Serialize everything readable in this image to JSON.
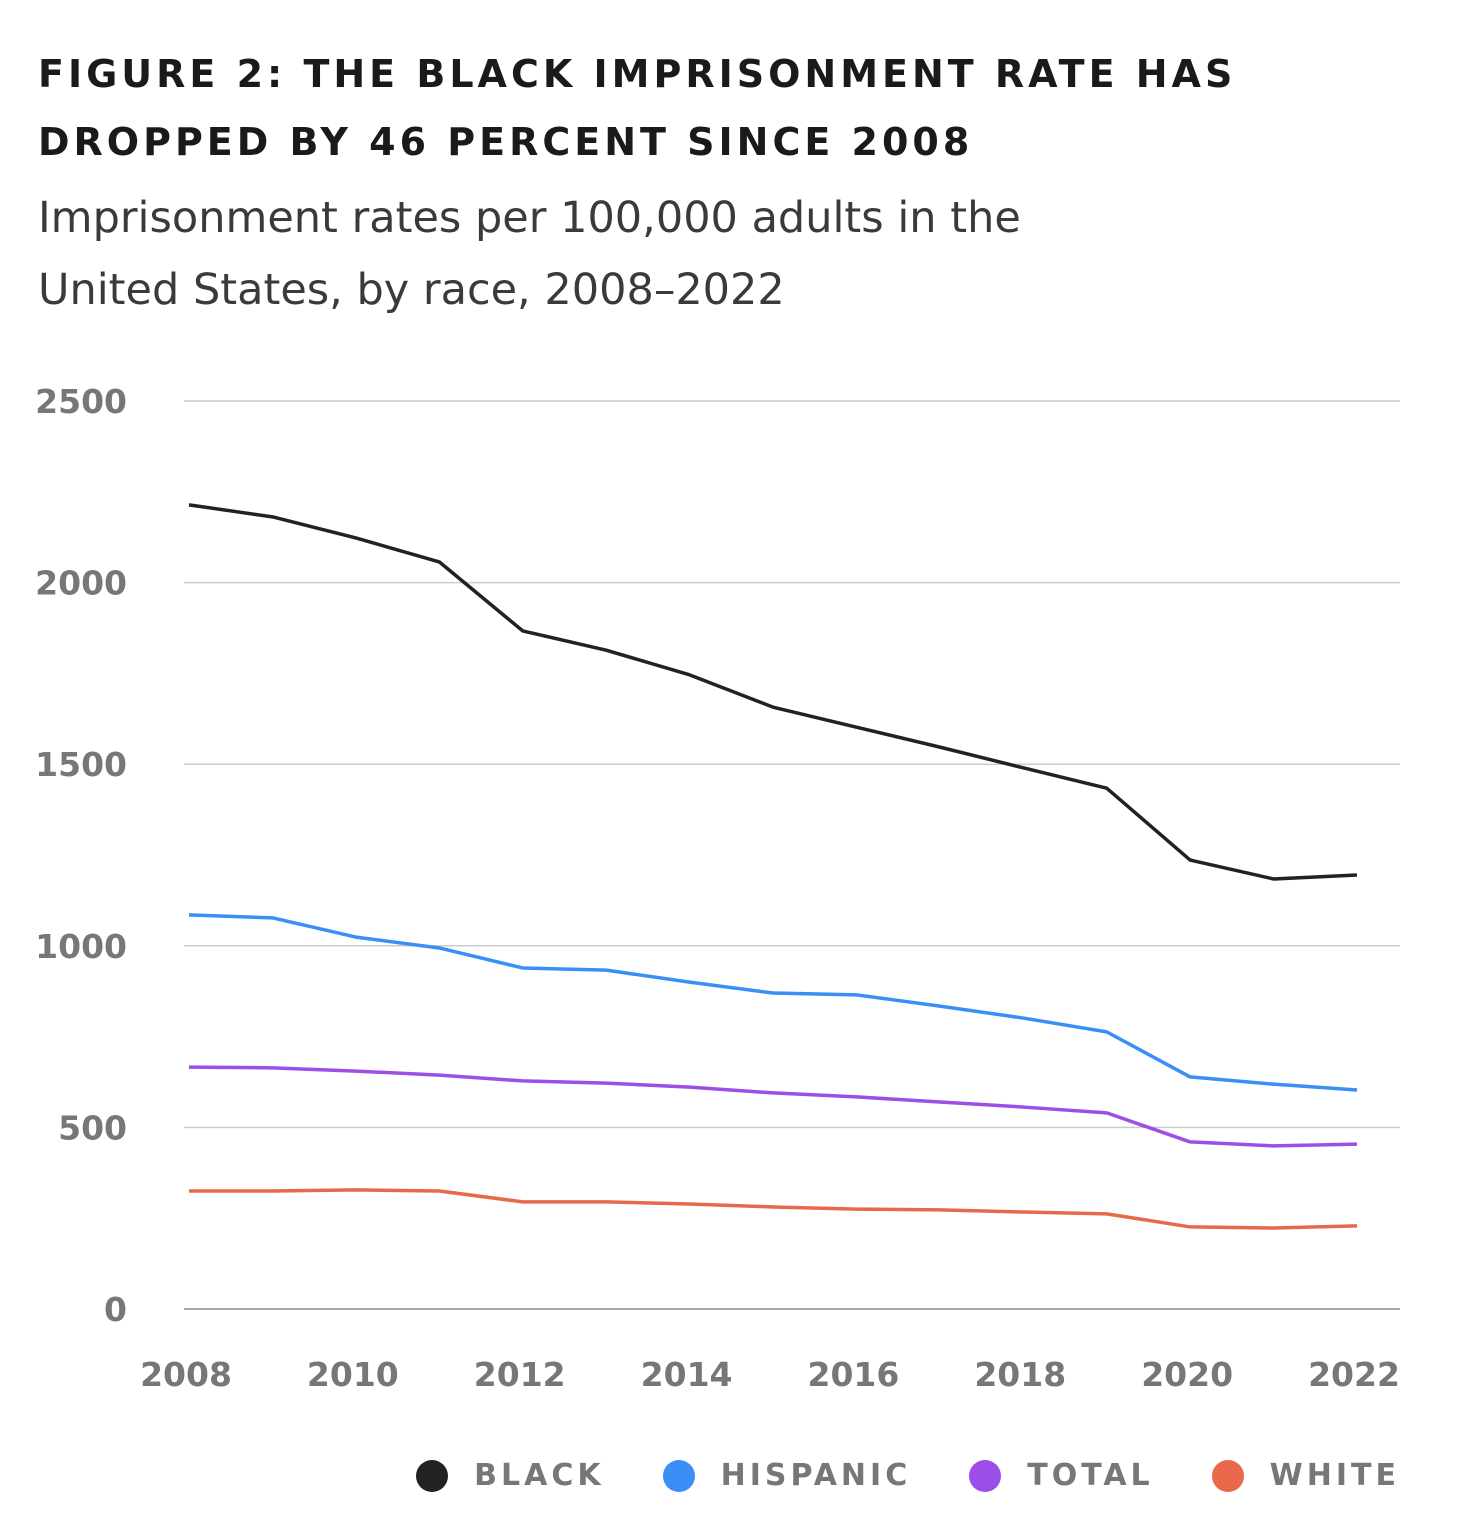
{
  "chart_data": {
    "type": "line",
    "title": "FIGURE 2: THE BLACK IMPRISONMENT RATE HAS DROPPED BY 46 PERCENT SINCE 2008",
    "subtitle": "Imprisonment rates per 100,000 adults in the United States, by race, 2008–2022",
    "xlabel": "",
    "ylabel": "",
    "x": [
      2008,
      2009,
      2010,
      2011,
      2012,
      2013,
      2014,
      2015,
      2016,
      2017,
      2018,
      2019,
      2020,
      2021,
      2022
    ],
    "xlim": [
      2008,
      2022
    ],
    "ylim": [
      0,
      2500
    ],
    "xticks": [
      "2008",
      "2010",
      "2012",
      "2014",
      "2016",
      "2018",
      "2020",
      "2022"
    ],
    "yticks": [
      "0",
      "500",
      "1000",
      "1500",
      "2000",
      "2500"
    ],
    "grid": "horizontal",
    "legend_position": "bottom-right",
    "series": [
      {
        "name": "BLACK",
        "color": "#222222",
        "values": [
          2214,
          2181,
          2123,
          2057,
          1867,
          1814,
          1746,
          1657,
          1602,
          1547,
          1490,
          1434,
          1236,
          1184,
          1195
        ]
      },
      {
        "name": "HISPANIC",
        "color": "#3a8ef6",
        "values": [
          1085,
          1077,
          1024,
          994,
          939,
          933,
          900,
          870,
          865,
          834,
          801,
          763,
          639,
          619,
          603
        ]
      },
      {
        "name": "TOTAL",
        "color": "#9b4fe8",
        "values": [
          666,
          664,
          655,
          644,
          628,
          622,
          611,
          595,
          584,
          570,
          556,
          540,
          460,
          449,
          454
        ]
      },
      {
        "name": "WHITE",
        "color": "#e8694a",
        "values": [
          325,
          325,
          328,
          325,
          295,
          295,
          289,
          281,
          275,
          273,
          267,
          262,
          226,
          223,
          229
        ]
      }
    ]
  }
}
